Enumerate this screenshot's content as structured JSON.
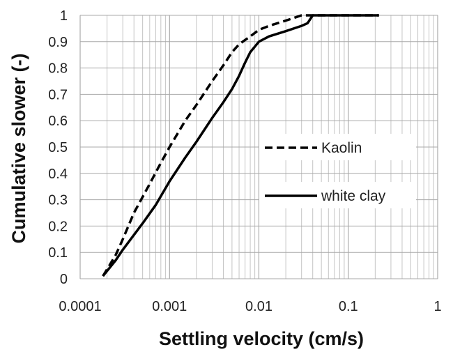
{
  "chart_data": {
    "type": "line",
    "title": "",
    "xlabel": "Settling velocity (cm/s)",
    "ylabel": "Cumulative slower (-)",
    "x_scale": "log",
    "xlim": [
      0.0001,
      1
    ],
    "ylim": [
      0,
      1
    ],
    "grid": true,
    "legend_position": "right",
    "x_ticks": [
      {
        "value": 0.0001,
        "label": "0.0001"
      },
      {
        "value": 0.001,
        "label": "0.001"
      },
      {
        "value": 0.01,
        "label": "0.01"
      },
      {
        "value": 0.1,
        "label": "0.1"
      },
      {
        "value": 1,
        "label": "1"
      }
    ],
    "y_ticks": [
      {
        "value": 0,
        "label": "0"
      },
      {
        "value": 0.1,
        "label": "0.1"
      },
      {
        "value": 0.2,
        "label": "0.2"
      },
      {
        "value": 0.3,
        "label": "0.3"
      },
      {
        "value": 0.4,
        "label": "0.4"
      },
      {
        "value": 0.5,
        "label": "0.5"
      },
      {
        "value": 0.6,
        "label": "0.6"
      },
      {
        "value": 0.7,
        "label": "0.7"
      },
      {
        "value": 0.8,
        "label": "0.8"
      },
      {
        "value": 0.9,
        "label": "0.9"
      },
      {
        "value": 1,
        "label": "1"
      }
    ],
    "series": [
      {
        "name": "Kaolin",
        "style": "dashed",
        "color": "#000000",
        "points": [
          [
            0.00018,
            0.01
          ],
          [
            0.00025,
            0.09
          ],
          [
            0.0003,
            0.15
          ],
          [
            0.0004,
            0.25
          ],
          [
            0.0006,
            0.36
          ],
          [
            0.0008,
            0.44
          ],
          [
            0.001,
            0.5
          ],
          [
            0.0015,
            0.6
          ],
          [
            0.002,
            0.66
          ],
          [
            0.003,
            0.75
          ],
          [
            0.004,
            0.81
          ],
          [
            0.005,
            0.86
          ],
          [
            0.006,
            0.89
          ],
          [
            0.008,
            0.92
          ],
          [
            0.01,
            0.945
          ],
          [
            0.013,
            0.96
          ],
          [
            0.02,
            0.98
          ],
          [
            0.03,
            1.0
          ],
          [
            0.05,
            1.0
          ],
          [
            0.1,
            1.0
          ],
          [
            0.22,
            1.0
          ]
        ]
      },
      {
        "name": "white clay",
        "style": "solid",
        "color": "#000000",
        "points": [
          [
            0.00018,
            0.01
          ],
          [
            0.00025,
            0.07
          ],
          [
            0.0003,
            0.11
          ],
          [
            0.0005,
            0.21
          ],
          [
            0.0007,
            0.28
          ],
          [
            0.001,
            0.37
          ],
          [
            0.0015,
            0.46
          ],
          [
            0.002,
            0.52
          ],
          [
            0.003,
            0.61
          ],
          [
            0.004,
            0.67
          ],
          [
            0.005,
            0.72
          ],
          [
            0.006,
            0.77
          ],
          [
            0.007,
            0.82
          ],
          [
            0.008,
            0.86
          ],
          [
            0.01,
            0.9
          ],
          [
            0.013,
            0.92
          ],
          [
            0.02,
            0.94
          ],
          [
            0.03,
            0.96
          ],
          [
            0.035,
            0.97
          ],
          [
            0.04,
            1.0
          ],
          [
            0.1,
            1.0
          ],
          [
            0.22,
            1.0
          ]
        ]
      }
    ]
  }
}
